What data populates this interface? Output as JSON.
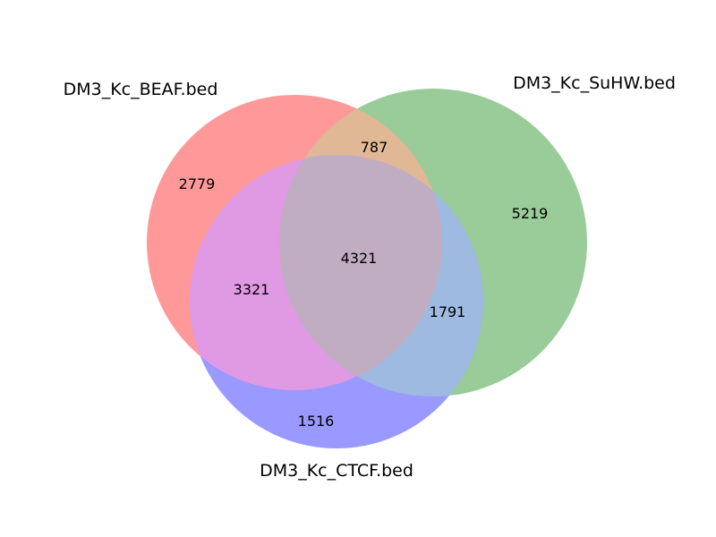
{
  "diagram": {
    "type": "venn3",
    "sets": [
      {
        "key": "A",
        "label": "DM3_Kc_BEAF.bed",
        "color": "#ff9999"
      },
      {
        "key": "B",
        "label": "DM3_Kc_SuHW.bed",
        "color": "#99cc99"
      },
      {
        "key": "C",
        "label": "DM3_Kc_CTCF.bed",
        "color": "#9999ff"
      }
    ],
    "regions": {
      "A_only": "2779",
      "B_only": "5219",
      "C_only": "1516",
      "AB_only": "787",
      "AC_only": "3321",
      "BC_only": "1791",
      "ABC": "4321"
    },
    "overlap_colors": {
      "AB": "#e0b896",
      "AC": "#e099e3",
      "BC": "#9ebae0",
      "ABC": "#c0adc2"
    }
  }
}
